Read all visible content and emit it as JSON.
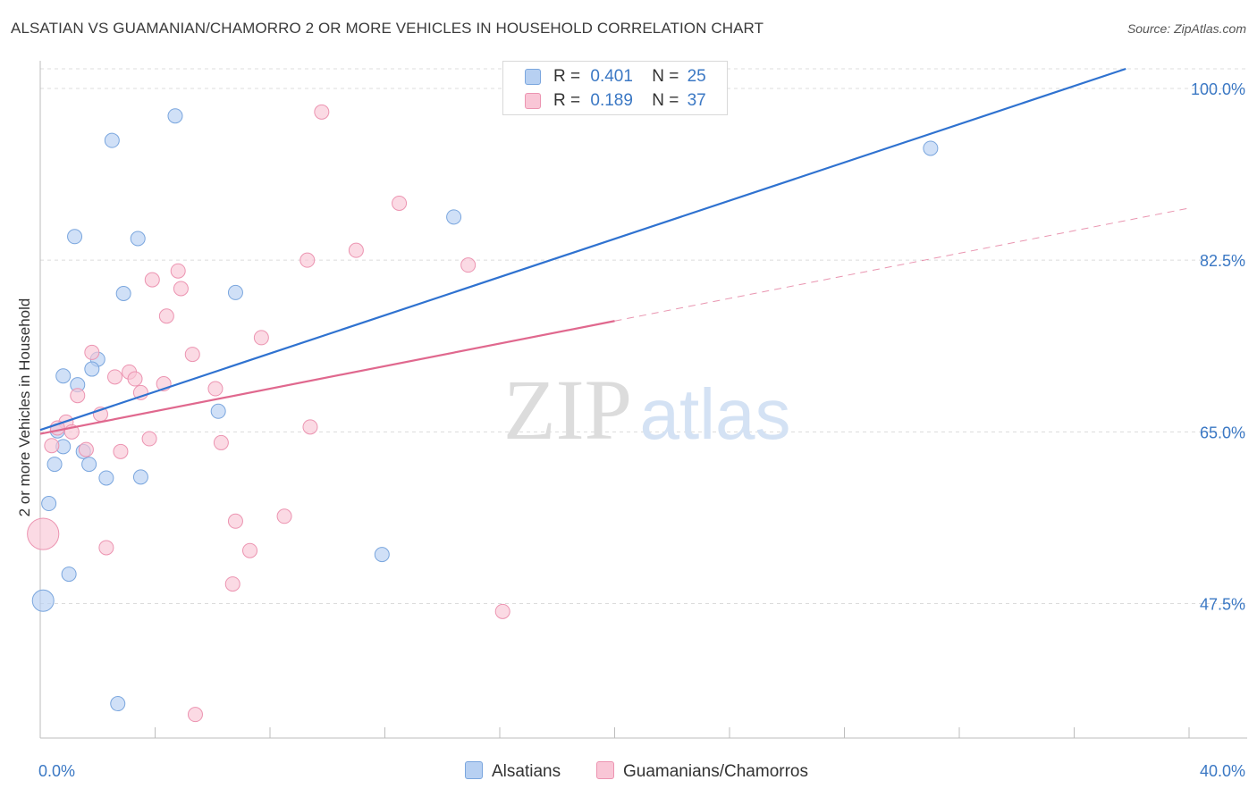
{
  "title": "ALSATIAN VS GUAMANIAN/CHAMORRO 2 OR MORE VEHICLES IN HOUSEHOLD CORRELATION CHART",
  "source": "Source: ZipAtlas.com",
  "watermark": {
    "zip": "ZIP",
    "atlas": "atlas"
  },
  "legend": {
    "r_label": "R =",
    "n_label": "N =",
    "rows": [
      {
        "r": "0.401",
        "n": "25"
      },
      {
        "r": "0.189",
        "n": "37"
      }
    ]
  },
  "colors": {
    "alsatians_fill": "#b7d0f2",
    "alsatians_stroke": "#7aa6de",
    "alsatians_line": "#2f72d0",
    "guam_fill": "#f9c6d6",
    "guam_stroke": "#ec94b1",
    "guam_line": "#e0688e",
    "grid": "#dcdcdc",
    "axis_label": "#3b78c4"
  },
  "chart_data": {
    "type": "scatter",
    "title": "ALSATIAN VS GUAMANIAN/CHAMORRO 2 OR MORE VEHICLES IN HOUSEHOLD CORRELATION CHART",
    "xlabel": "",
    "ylabel": "2 or more Vehicles in Household",
    "xlim": [
      0,
      40
    ],
    "ylim": [
      33.8,
      102
    ],
    "x_tick_labels": [
      "0.0%",
      "40.0%"
    ],
    "y_ticks": [
      47.5,
      65.0,
      82.5,
      100.0
    ],
    "y_tick_labels": [
      "47.5%",
      "65.0%",
      "82.5%",
      "100.0%"
    ],
    "grid": true,
    "legend_position": "bottom-center",
    "series": [
      {
        "name": "Alsatians",
        "r": 0.401,
        "n": 25,
        "trend": {
          "x": [
            0.0,
            37.8
          ],
          "y": [
            65.2,
            102.0
          ],
          "style": "solid"
        },
        "points": [
          [
            4.7,
            97.2
          ],
          [
            2.5,
            94.7
          ],
          [
            31.0,
            93.9
          ],
          [
            14.4,
            86.9
          ],
          [
            1.2,
            84.9
          ],
          [
            3.4,
            84.7
          ],
          [
            2.9,
            79.1
          ],
          [
            6.8,
            79.2
          ],
          [
            2.0,
            72.4
          ],
          [
            1.8,
            71.4
          ],
          [
            0.8,
            70.7
          ],
          [
            1.3,
            69.8
          ],
          [
            6.2,
            67.1
          ],
          [
            0.6,
            65.1
          ],
          [
            0.8,
            63.5
          ],
          [
            1.5,
            63.0
          ],
          [
            0.5,
            61.7
          ],
          [
            1.7,
            61.7
          ],
          [
            2.3,
            60.3
          ],
          [
            3.5,
            60.4
          ],
          [
            0.3,
            57.7
          ],
          [
            11.9,
            52.5
          ],
          [
            1.0,
            50.5
          ],
          [
            0.1,
            47.8
          ],
          [
            2.7,
            37.3
          ]
        ],
        "sizes": [
          1,
          1,
          1,
          1,
          1,
          1,
          1,
          1,
          1,
          1,
          1,
          1,
          1,
          1,
          1,
          1,
          1,
          1,
          1,
          1,
          1,
          1,
          1,
          1.5,
          1
        ]
      },
      {
        "name": "Guamanians/Chamorros",
        "r": 0.189,
        "n": 37,
        "trend": {
          "x": [
            0.0,
            20.0
          ],
          "y": [
            64.8,
            76.3
          ],
          "style": "solid",
          "dashed_extension_to": [
            40.0,
            87.8
          ]
        },
        "points": [
          [
            9.8,
            97.6
          ],
          [
            12.5,
            88.3
          ],
          [
            11.0,
            83.5
          ],
          [
            9.3,
            82.5
          ],
          [
            14.9,
            82.0
          ],
          [
            4.8,
            81.4
          ],
          [
            3.9,
            80.5
          ],
          [
            4.9,
            79.6
          ],
          [
            4.4,
            76.8
          ],
          [
            7.7,
            74.6
          ],
          [
            1.8,
            73.1
          ],
          [
            5.3,
            72.9
          ],
          [
            3.1,
            71.1
          ],
          [
            2.6,
            70.6
          ],
          [
            3.3,
            70.4
          ],
          [
            4.3,
            69.9
          ],
          [
            6.1,
            69.4
          ],
          [
            3.5,
            69.0
          ],
          [
            1.3,
            68.7
          ],
          [
            2.1,
            66.8
          ],
          [
            0.9,
            66.0
          ],
          [
            0.6,
            65.4
          ],
          [
            1.1,
            65.0
          ],
          [
            9.4,
            65.5
          ],
          [
            3.8,
            64.3
          ],
          [
            6.3,
            63.9
          ],
          [
            0.4,
            63.6
          ],
          [
            1.6,
            63.2
          ],
          [
            2.8,
            63.0
          ],
          [
            0.1,
            54.6
          ],
          [
            6.8,
            55.9
          ],
          [
            8.5,
            56.4
          ],
          [
            2.3,
            53.2
          ],
          [
            7.3,
            52.9
          ],
          [
            6.7,
            49.5
          ],
          [
            16.1,
            46.7
          ],
          [
            5.4,
            36.2
          ]
        ],
        "sizes": [
          1,
          1,
          1,
          1,
          1,
          1,
          1,
          1,
          1,
          1,
          1,
          1,
          1,
          1,
          1,
          1,
          1,
          1,
          1,
          1,
          1,
          1,
          1,
          1,
          1,
          1,
          1,
          1,
          1,
          2.2,
          1,
          1,
          1,
          1,
          1,
          1,
          1
        ]
      }
    ]
  }
}
